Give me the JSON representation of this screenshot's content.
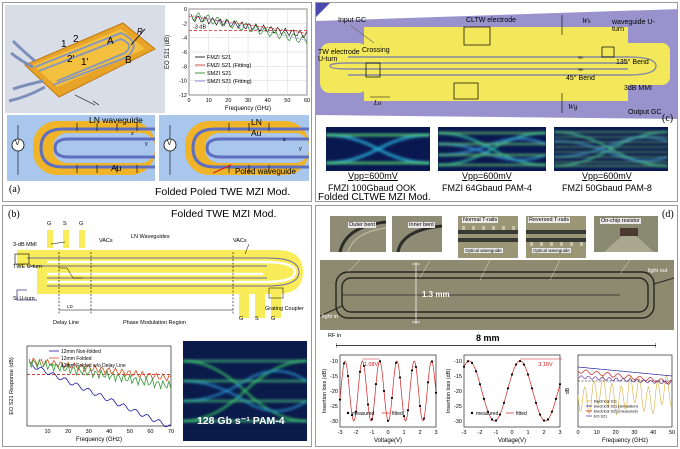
{
  "panel_a": {
    "letter": "(a)",
    "caption": "Folded Poled TWE MZI Mod.",
    "device_labels": {
      "one": "1",
      "two": "2",
      "two_prime": "2'",
      "one_prime": "1'",
      "A": "A",
      "B": "B",
      "R": "R"
    },
    "cross_left": {
      "ln": "LN waveguide",
      "au": "Au",
      "v": "V"
    },
    "cross_right": {
      "ln": "LN",
      "au": "Au",
      "poled": "Poled waveguide",
      "v": "V"
    },
    "axis_labels": {
      "x": "x",
      "y": "y",
      "z": "z"
    },
    "chart": {
      "ylabel": "EO S21 (dB)",
      "xlabel": "Frequency (GHz)",
      "threshold_label": "-3 dB",
      "x_ticks": [
        "0",
        "10",
        "20",
        "30",
        "40",
        "50",
        "60"
      ],
      "y_ticks": [
        "0",
        "-2",
        "-4",
        "-6",
        "-8",
        "-10",
        "-12"
      ],
      "legend": [
        "FMZI S21",
        "FMZI S21 (Fitting)",
        "SMZI S21",
        "SMZI S21 (Fitting)"
      ]
    }
  },
  "panel_b": {
    "letter": "(b)",
    "caption": "Folded TWE MZI Mod.",
    "labels": {
      "gsg_top": [
        "G",
        "S",
        "G"
      ],
      "gsg_bottom": [
        "G",
        "S",
        "G"
      ],
      "mmi": "3-dB MMI",
      "twe_uturn": "TWE U-turn",
      "si_uturn": "Si U-turn",
      "vacs_left": "VACs",
      "vacs_right": "VACs",
      "ln_waveguides": "LN Waveguides",
      "grating": "Grating Coupler",
      "delay_line": "Delay Line",
      "phase_region": "Phase Modulation Region",
      "ld": "LD"
    },
    "chart": {
      "ylabel": "EO S21 Response (dB)",
      "xlabel": "Frequency (GHz)",
      "x_ticks": [
        "10",
        "20",
        "30",
        "40",
        "50",
        "60",
        "70"
      ],
      "legend": [
        "12mm Non-folded",
        "12mm Folded",
        "12mm Folded w/o Delay Line"
      ]
    },
    "eye_label": "128 Gb s⁻¹ PAM-4"
  },
  "panel_c": {
    "letter": "(c)",
    "caption": "Folded CLTWE MZI Mod.",
    "labels": {
      "input_gc": "Input GC",
      "cltw": "CLTW electrode",
      "wg": "Wg",
      "waveguide_uturn": "waveguide U-turn",
      "tw_uturn": "TW electrode U-turn",
      "crossing": "Crossing",
      "bend135": "135° Bend",
      "bend45": "45° Bend",
      "mmi": "3dB MMI",
      "output_gc": "Output GC",
      "lo": "Lo",
      "wr": "Wr",
      "we": "We",
      "ws": "Ws"
    },
    "eyes": [
      {
        "vpp": "Vpp=600mV",
        "desc": "FMZI 100Gbaud OOK"
      },
      {
        "vpp": "Vpp=600mV",
        "desc": "FMZI 64Gbaud PAM-4"
      },
      {
        "vpp": "Vpp=600mV",
        "desc": "FMZI 50Gbaud PAM-8"
      }
    ]
  },
  "panel_d": {
    "letter": "(d)",
    "insets": [
      "Outer bent",
      "Inner bent",
      "Normal T-rails",
      "Reversed T-rails",
      "On-chip resistor"
    ],
    "optical_wg": [
      "Optical waveguide",
      "Optical waveguide"
    ],
    "rf_in": "RF in",
    "light_in": "light in",
    "light_out": "light out",
    "dim_13": "1.3 mm",
    "dim_8": "8 mm",
    "chart1": {
      "ylabel": "Insertion loss (dB)",
      "xlabel": "Voltage(V)",
      "vpi": "1.08V",
      "legend": [
        "measured",
        "fitted"
      ],
      "x_ticks": [
        "-3",
        "-2",
        "-1",
        "0",
        "1",
        "2",
        "3"
      ],
      "y_ticks": [
        "-10",
        "-15",
        "-20",
        "-25",
        "-30"
      ]
    },
    "chart2": {
      "ylabel": "Insertion loss (dB)",
      "xlabel": "Voltage(V)",
      "vpi": "3.18V",
      "legend": [
        "measured",
        "fitted"
      ],
      "x_ticks": [
        "-3",
        "-2",
        "-1",
        "0",
        "1",
        "2",
        "3"
      ],
      "y_ticks": [
        "-10",
        "-15",
        "-20",
        "-25",
        "-30"
      ]
    },
    "chart3": {
      "xlabel": "Frequency (GHz)",
      "ylabel": "dB",
      "x_ticks": [
        "0",
        "10",
        "20",
        "30",
        "40",
        "50"
      ],
      "legend": [
        "Electrical S11",
        "Electrical S21 (simulation)",
        "Electrical S21 (measured)",
        "EO S21"
      ]
    }
  },
  "colors": {
    "gold": "#f0b428",
    "yellow": "#f8ec5a",
    "blue_bg": "#a8c8ec",
    "lilac": "#9890c8",
    "lightblue": "#bcdcf4",
    "gray": "#7e7e7e"
  }
}
